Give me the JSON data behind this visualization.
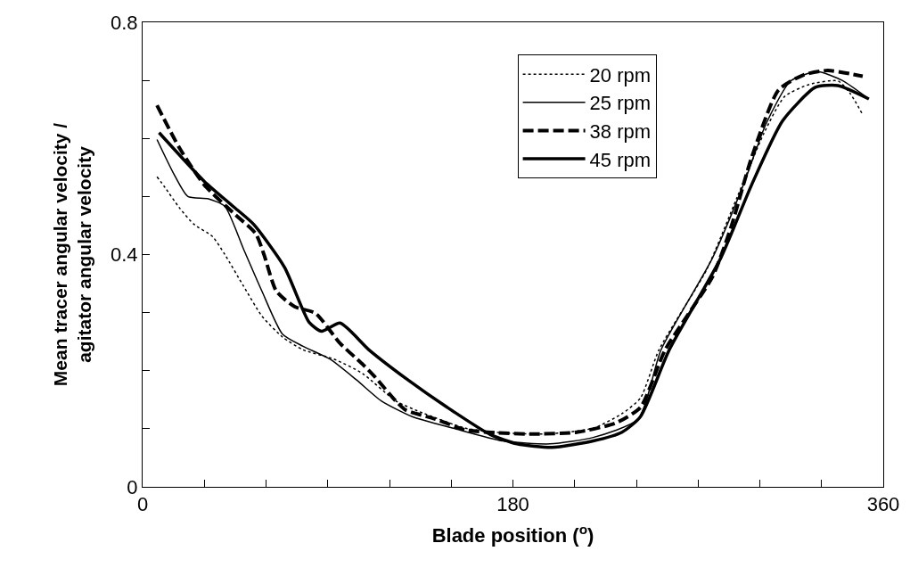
{
  "chart_data": {
    "type": "line",
    "xlabel": "Blade position ($^{o}$)",
    "ylabel": "Mean tracer angular velocity /\nagitator angular velocity",
    "xlim": [
      0,
      360
    ],
    "xticks": [
      0,
      {
        "value": 30,
        "label": null
      },
      {
        "value": 60,
        "label": null
      },
      {
        "value": 90,
        "label": null
      },
      {
        "value": 120,
        "label": null
      },
      {
        "value": 150,
        "label": null
      },
      180,
      {
        "value": 210,
        "label": null
      },
      {
        "value": 240,
        "label": null
      },
      {
        "value": 270,
        "label": null
      },
      {
        "value": 300,
        "label": null
      },
      {
        "value": 330,
        "label": null
      },
      360
    ],
    "ylim": [
      0,
      0.8
    ],
    "yticks": [
      0,
      {
        "value": 0.1,
        "label": null
      },
      {
        "value": 0.2,
        "label": null
      },
      {
        "value": 0.3,
        "label": null
      },
      0.4,
      {
        "value": 0.5,
        "label": null
      },
      {
        "value": 0.6,
        "label": null
      },
      {
        "value": 0.7,
        "label": null
      },
      0.8
    ],
    "legend": "top",
    "marker": "none",
    "series": [
      {
        "name": "20 rpm",
        "color": "#000000",
        "line_style": "dotted",
        "x": [
          7,
          11,
          18,
          25,
          34,
          40,
          49,
          58,
          68,
          78,
          93,
          107,
          123,
          137,
          157,
          175,
          197,
          219,
          233,
          242,
          251,
          274,
          289,
          302,
          312,
          324,
          338,
          344,
          350
        ],
        "values": [
          0.534,
          0.515,
          0.48,
          0.452,
          0.431,
          0.4,
          0.346,
          0.294,
          0.258,
          0.236,
          0.22,
          0.195,
          0.148,
          0.126,
          0.101,
          0.093,
          0.091,
          0.101,
          0.126,
          0.153,
          0.236,
          0.373,
          0.499,
          0.609,
          0.672,
          0.693,
          0.699,
          0.677,
          0.641
        ]
      },
      {
        "name": "25 rpm",
        "color": "#000000",
        "line_style": "solid",
        "x": [
          7,
          15,
          22,
          32,
          40,
          49,
          58,
          68,
          78,
          91,
          104,
          116,
          131,
          151,
          175,
          198,
          219,
          241,
          252,
          277,
          292,
          303,
          315,
          328,
          340,
          353
        ],
        "values": [
          0.598,
          0.54,
          0.5,
          0.496,
          0.483,
          0.41,
          0.337,
          0.263,
          0.242,
          0.22,
          0.184,
          0.148,
          0.121,
          0.101,
          0.079,
          0.074,
          0.085,
          0.117,
          0.236,
          0.394,
          0.52,
          0.625,
          0.699,
          0.715,
          0.7,
          0.668
        ]
      },
      {
        "name": "38 rpm",
        "color": "#000000",
        "line_style": "dashed",
        "x": [
          7,
          18,
          30,
          44,
          55,
          59,
          65,
          74,
          84,
          96,
          107,
          113,
          123,
          128,
          142,
          157,
          172,
          189,
          211,
          230,
          242,
          254,
          277,
          286,
          296,
          309,
          321,
          333,
          350
        ],
        "values": [
          0.657,
          0.583,
          0.52,
          0.472,
          0.436,
          0.4,
          0.337,
          0.31,
          0.299,
          0.247,
          0.211,
          0.189,
          0.148,
          0.132,
          0.117,
          0.098,
          0.093,
          0.091,
          0.094,
          0.11,
          0.137,
          0.236,
          0.362,
          0.447,
          0.567,
          0.683,
          0.709,
          0.717,
          0.707
        ]
      },
      {
        "name": "45 rpm",
        "color": "#000000",
        "line_style": "solid",
        "x": [
          8,
          30,
          44,
          54,
          69,
          81,
          87,
          96,
          110,
          129,
          148,
          169,
          182,
          199,
          219,
          233,
          242,
          256,
          281,
          296,
          311,
          327,
          338,
          353
        ],
        "values": [
          0.61,
          0.526,
          0.483,
          0.452,
          0.378,
          0.283,
          0.268,
          0.282,
          0.236,
          0.184,
          0.137,
          0.09,
          0.074,
          0.068,
          0.079,
          0.094,
          0.121,
          0.236,
          0.394,
          0.52,
          0.63,
          0.688,
          0.691,
          0.668
        ]
      }
    ]
  }
}
